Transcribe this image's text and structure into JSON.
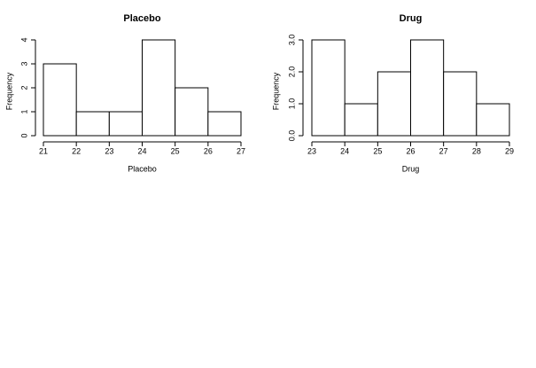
{
  "chart_data": [
    {
      "type": "histogram",
      "title": "Placebo",
      "xlabel": "Placebo",
      "ylabel": "Frequency",
      "bins": [
        21,
        22,
        23,
        24,
        25,
        26,
        27
      ],
      "values": [
        3,
        1,
        1,
        4,
        2,
        1
      ],
      "color": "#ffffff",
      "xlim": [
        21,
        27
      ],
      "xticks": [
        21,
        22,
        23,
        24,
        25,
        26,
        27
      ],
      "ylim": [
        0,
        4
      ],
      "yticks": [
        0,
        1,
        2,
        3,
        4
      ]
    },
    {
      "type": "histogram",
      "title": "Drug",
      "xlabel": "Drug",
      "ylabel": "Frequency",
      "bins": [
        23,
        24,
        25,
        26,
        27,
        28,
        29
      ],
      "values": [
        3,
        1,
        2,
        3,
        2,
        1
      ],
      "color": "#ffffff",
      "xlim": [
        23,
        29
      ],
      "xticks": [
        23,
        24,
        25,
        26,
        27,
        28,
        29
      ],
      "ylim": [
        0,
        3
      ],
      "yticks": [
        {
          "value": 0,
          "label": "0.0"
        },
        {
          "value": 1,
          "label": "1.0"
        },
        {
          "value": 2,
          "label": "2.0"
        },
        {
          "value": 3,
          "label": "3.0"
        }
      ]
    }
  ]
}
